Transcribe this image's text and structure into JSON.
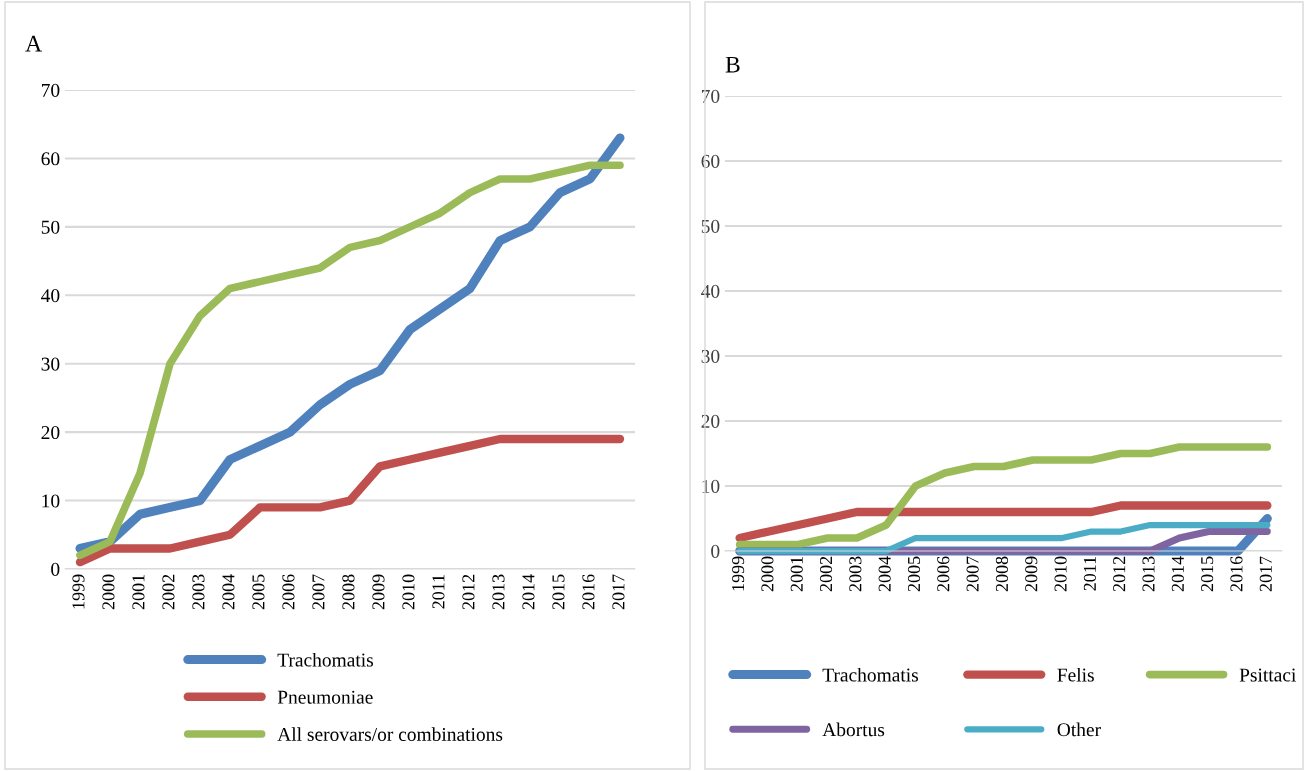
{
  "chart_data": [
    {
      "type": "line",
      "title": "A",
      "categories": [
        "1999",
        "2000",
        "2001",
        "2002",
        "2003",
        "2004",
        "2005",
        "2006",
        "2007",
        "2008",
        "2009",
        "2010",
        "2011",
        "2012",
        "2013",
        "2014",
        "2015",
        "2016",
        "2017"
      ],
      "ylim": [
        0,
        70
      ],
      "yticks": [
        0,
        10,
        20,
        30,
        40,
        50,
        60,
        70
      ],
      "grid": "y",
      "legend": "bottom",
      "marker": "none",
      "line_style": "solid",
      "series": [
        {
          "name": "Trachomatis",
          "color": "#4f81bd",
          "values": [
            3,
            4,
            8,
            9,
            10,
            16,
            18,
            20,
            24,
            27,
            29,
            35,
            38,
            41,
            48,
            50,
            55,
            57,
            63
          ]
        },
        {
          "name": "Pneumoniae",
          "color": "#c0504d",
          "values": [
            1,
            3,
            3,
            3,
            4,
            5,
            9,
            9,
            9,
            10,
            15,
            16,
            17,
            18,
            19,
            19,
            19,
            19,
            19
          ]
        },
        {
          "name": "All serovars/or combinations",
          "color": "#9bbb59",
          "values": [
            2,
            4,
            14,
            30,
            37,
            41,
            42,
            43,
            44,
            47,
            48,
            50,
            52,
            55,
            57,
            57,
            58,
            59,
            59
          ]
        }
      ]
    },
    {
      "type": "line",
      "title": "B",
      "categories": [
        "1999",
        "2000",
        "2001",
        "2002",
        "2003",
        "2004",
        "2005",
        "2006",
        "2007",
        "2008",
        "2009",
        "2010",
        "2011",
        "2012",
        "2013",
        "2014",
        "2015",
        "2016",
        "2017"
      ],
      "ylim": [
        0,
        70
      ],
      "yticks": [
        0,
        10,
        20,
        30,
        40,
        50,
        60,
        70
      ],
      "grid": "y",
      "legend": "bottom",
      "marker": "none",
      "line_style": "solid",
      "series": [
        {
          "name": "Trachomatis",
          "color": "#4f81bd",
          "values": [
            0,
            0,
            0,
            0,
            0,
            0,
            0,
            0,
            0,
            0,
            0,
            0,
            0,
            0,
            0,
            0,
            0,
            0,
            5
          ]
        },
        {
          "name": "Felis",
          "color": "#c0504d",
          "values": [
            2,
            3,
            4,
            5,
            6,
            6,
            6,
            6,
            6,
            6,
            6,
            6,
            6,
            7,
            7,
            7,
            7,
            7,
            7
          ]
        },
        {
          "name": "Psittaci",
          "color": "#9bbb59",
          "values": [
            1,
            1,
            1,
            2,
            2,
            4,
            10,
            12,
            13,
            13,
            14,
            14,
            14,
            15,
            15,
            16,
            16,
            16,
            16
          ]
        },
        {
          "name": "Abortus",
          "color": "#8064a2",
          "values": [
            0,
            0,
            0,
            0,
            0,
            0,
            0,
            0,
            0,
            0,
            0,
            0,
            0,
            0,
            0,
            2,
            3,
            3,
            3
          ]
        },
        {
          "name": "Other",
          "color": "#4bacc6",
          "values": [
            0,
            0,
            0,
            0,
            0,
            0,
            2,
            2,
            2,
            2,
            2,
            2,
            3,
            3,
            4,
            4,
            4,
            4,
            4
          ]
        }
      ]
    }
  ]
}
